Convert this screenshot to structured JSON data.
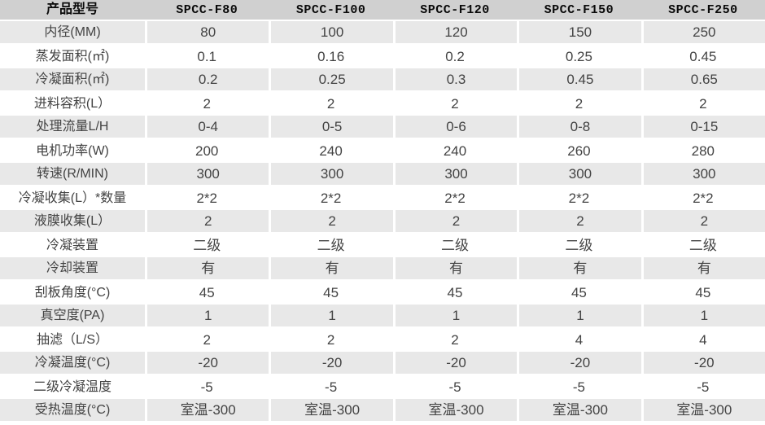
{
  "table": {
    "header": {
      "label": "产品型号",
      "models": [
        "SPCC-F80",
        "SPCC-F100",
        "SPCC-F120",
        "SPCC-F150",
        "SPCC-F250"
      ]
    },
    "rows": [
      {
        "label": "内径(MM)",
        "values": [
          "80",
          "100",
          "120",
          "150",
          "250"
        ]
      },
      {
        "label": "蒸发面积(㎡)",
        "values": [
          "0.1",
          "0.16",
          "0.2",
          "0.25",
          "0.45"
        ]
      },
      {
        "label": "冷凝面积(㎡)",
        "values": [
          "0.2",
          "0.25",
          "0.3",
          "0.45",
          "0.65"
        ]
      },
      {
        "label": "进料容积(L）",
        "values": [
          "2",
          "2",
          "2",
          "2",
          "2"
        ]
      },
      {
        "label": "处理流量L/H",
        "values": [
          "0-4",
          "0-5",
          "0-6",
          "0-8",
          "0-15"
        ]
      },
      {
        "label": "电机功率(W)",
        "values": [
          "200",
          "240",
          "240",
          "260",
          "280"
        ]
      },
      {
        "label": "转速(R/MIN)",
        "values": [
          "300",
          "300",
          "300",
          "300",
          "300"
        ]
      },
      {
        "label": "冷凝收集(L）*数量",
        "values": [
          "2*2",
          "2*2",
          "2*2",
          "2*2",
          "2*2"
        ]
      },
      {
        "label": "液膜收集(L）",
        "values": [
          "2",
          "2",
          "2",
          "2",
          "2"
        ]
      },
      {
        "label": "冷凝装置",
        "values": [
          "二级",
          "二级",
          "二级",
          "二级",
          "二级"
        ]
      },
      {
        "label": "冷却装置",
        "values": [
          "有",
          "有",
          "有",
          "有",
          "有"
        ]
      },
      {
        "label": "刮板角度(°C)",
        "values": [
          "45",
          "45",
          "45",
          "45",
          "45"
        ]
      },
      {
        "label": "真空度(PA)",
        "values": [
          "1",
          "1",
          "1",
          "1",
          "1"
        ]
      },
      {
        "label": "抽滤（L/S）",
        "values": [
          "2",
          "2",
          "2",
          "4",
          "4"
        ]
      },
      {
        "label": "冷凝温度(°C)",
        "values": [
          "-20",
          "-20",
          "-20",
          "-20",
          "-20"
        ]
      },
      {
        "label": "二级冷凝温度",
        "values": [
          "-5",
          "-5",
          "-5",
          "-5",
          "-5"
        ]
      },
      {
        "label": "受热温度(°C)",
        "values": [
          "室温-300",
          "室温-300",
          "室温-300",
          "室温-300",
          "室温-300"
        ]
      }
    ]
  },
  "colors": {
    "header_bg": "#d0d0d0",
    "row_alt_bg": "#e8e8e8",
    "row_bg": "#ffffff",
    "text": "#434343",
    "header_text": "#0a0a0a"
  }
}
